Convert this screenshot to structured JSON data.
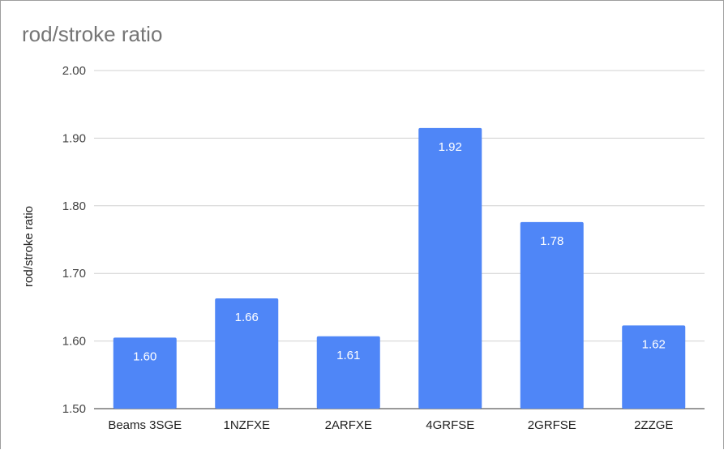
{
  "chart_data": {
    "type": "bar",
    "title": "rod/stroke ratio",
    "ylabel": "rod/stroke ratio",
    "xlabel": "",
    "categories": [
      "Beams 3SGE",
      "1NZFXE",
      "2ARFXE",
      "4GRFSE",
      "2GRFSE",
      "2ZZGE"
    ],
    "values": [
      1.605,
      1.663,
      1.607,
      1.915,
      1.776,
      1.623
    ],
    "data_labels": [
      "1.60",
      "1.66",
      "1.61",
      "1.92",
      "1.78",
      "1.62"
    ],
    "ylim": [
      1.5,
      2.0
    ],
    "yticks": [
      "1.50",
      "1.60",
      "1.70",
      "1.80",
      "1.90",
      "2.00"
    ],
    "grid": true,
    "bar_color": "#4f86f7",
    "grid_color": "#d0d0d0"
  }
}
